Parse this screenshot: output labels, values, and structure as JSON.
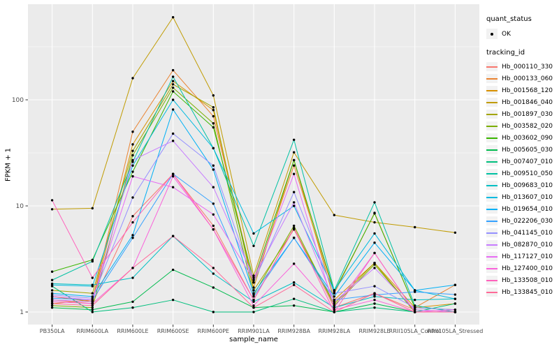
{
  "chart_data": {
    "type": "line",
    "title": "",
    "xlabel": "sample_name",
    "ylabel": "FPKM + 1",
    "y_scale": "log10",
    "y_ticks": [
      1,
      10,
      100
    ],
    "y_minor_ticks": [
      3.1623,
      31.623,
      316.23
    ],
    "ylim": [
      0.76,
      800
    ],
    "grid": true,
    "legend_position": "right",
    "categories": [
      "PB350LA",
      "RRIM600LA",
      "RRIM600LE",
      "RRIM600SE",
      "RRIM600PE",
      "RRIM901LA",
      "RRIM928BA",
      "RRIM928LA",
      "RRIM928LE",
      "RRII105LA_Control",
      "RRII105LA_Stressed"
    ],
    "series": [
      {
        "name": "Hb_000110_330",
        "color": "#F8766D",
        "values": [
          1.3,
          1.2,
          8,
          20,
          6.5,
          1.3,
          6.2,
          1.1,
          1.5,
          1.05,
          1.0
        ]
      },
      {
        "name": "Hb_000133_060",
        "color": "#EA8331",
        "values": [
          1.2,
          1.3,
          50,
          190,
          70,
          1.9,
          24,
          1.5,
          8.6,
          1.1,
          1.8
        ]
      },
      {
        "name": "Hb_001568_120",
        "color": "#D89000",
        "values": [
          1.4,
          1.25,
          38,
          150,
          80,
          1.7,
          27,
          1.3,
          2.9,
          1.1,
          1.2
        ]
      },
      {
        "name": "Hb_001846_040",
        "color": "#C09B00",
        "values": [
          9.3,
          9.5,
          160,
          600,
          110,
          2.2,
          32,
          8.2,
          7.0,
          6.3,
          5.6
        ]
      },
      {
        "name": "Hb_001897_030",
        "color": "#A3A500",
        "values": [
          1.6,
          1.5,
          33,
          140,
          85,
          1.6,
          6.0,
          1.2,
          2.9,
          1.0,
          1.0
        ]
      },
      {
        "name": "Hb_003582_020",
        "color": "#7CAE00",
        "values": [
          1.15,
          1.1,
          30,
          130,
          60,
          1.45,
          6.5,
          1.15,
          2.8,
          1.0,
          1.0
        ]
      },
      {
        "name": "Hb_003602_090",
        "color": "#39B600",
        "values": [
          2.4,
          3.1,
          21,
          120,
          55,
          2.0,
          27,
          1.55,
          8.5,
          1.1,
          1.05
        ]
      },
      {
        "name": "Hb_005605_030",
        "color": "#00BB4E",
        "values": [
          1.1,
          1.05,
          1.25,
          2.5,
          1.7,
          1.1,
          1.15,
          1.0,
          1.2,
          1.0,
          1.0
        ]
      },
      {
        "name": "Hb_007407_010",
        "color": "#00BF7D",
        "values": [
          1.75,
          1.0,
          1.1,
          1.3,
          1.0,
          1.0,
          1.33,
          1.0,
          1.1,
          1.0,
          1.2
        ]
      },
      {
        "name": "Hb_009510_050",
        "color": "#00C1A3",
        "values": [
          2.0,
          3.0,
          26,
          165,
          35,
          4.2,
          42,
          1.6,
          10.8,
          1.15,
          1.0
        ]
      },
      {
        "name": "Hb_009683_010",
        "color": "#00BFC4",
        "values": [
          1.85,
          1.8,
          2.1,
          5.2,
          2.3,
          1.25,
          1.9,
          1.1,
          1.4,
          1.3,
          1.33
        ]
      },
      {
        "name": "Hb_013607_010",
        "color": "#00BAE0",
        "values": [
          1.8,
          1.75,
          24,
          100,
          35,
          5.5,
          10,
          1.6,
          5.5,
          1.6,
          1.33
        ]
      },
      {
        "name": "Hb_019654_010",
        "color": "#00B0F6",
        "values": [
          1.5,
          1.4,
          5.3,
          81,
          22,
          1.5,
          5.0,
          1.4,
          4.5,
          1.6,
          1.8
        ]
      },
      {
        "name": "Hb_022206_030",
        "color": "#35A2FF",
        "values": [
          1.35,
          1.3,
          5.0,
          20,
          10.5,
          1.4,
          5.0,
          1.3,
          1.45,
          1.55,
          1.46
        ]
      },
      {
        "name": "Hb_041145_010",
        "color": "#9590FF",
        "values": [
          1.45,
          1.35,
          12,
          48,
          24,
          1.9,
          13.5,
          1.5,
          1.75,
          1.1,
          1.05
        ]
      },
      {
        "name": "Hb_082870_010",
        "color": "#C77CFF",
        "values": [
          1.3,
          1.25,
          27,
          41,
          15,
          2.1,
          10.8,
          1.25,
          2.6,
          1.05,
          1.0
        ]
      },
      {
        "name": "Hb_117127_010",
        "color": "#E76BF3",
        "values": [
          1.4,
          1.3,
          19,
          15,
          8.3,
          2.0,
          20,
          1.1,
          3.6,
          1.0,
          1.0
        ]
      },
      {
        "name": "Hb_127400_010",
        "color": "#FA62DB",
        "values": [
          1.25,
          1.2,
          2.6,
          19,
          6.0,
          1.15,
          2.85,
          1.05,
          1.3,
          1.0,
          1.05
        ]
      },
      {
        "name": "Hb_133508_010",
        "color": "#FF62BC",
        "values": [
          11.3,
          2.1,
          7.0,
          20,
          6.0,
          1.3,
          6.1,
          1.0,
          3.6,
          1.0,
          1.0
        ]
      },
      {
        "name": "Hb_133845_010",
        "color": "#FF6A98",
        "values": [
          1.2,
          1.15,
          2.6,
          5.2,
          2.6,
          1.1,
          1.8,
          1.0,
          1.5,
          1.0,
          1.0
        ]
      }
    ],
    "colors": {
      "panel_bg": "#EBEBEB",
      "grid_major": "#FFFFFF",
      "grid_minor": "#FFFFFF",
      "tick_label": "#4D4D4D",
      "tick_mark": "#333333",
      "point": "#000000",
      "legend_key_bg": "#F2F2F2"
    }
  },
  "legend": {
    "quant_status_title": "quant_status",
    "quant_status_items": [
      {
        "label": "OK",
        "glyph": "point-icon"
      }
    ],
    "tracking_id_title": "tracking_id"
  }
}
